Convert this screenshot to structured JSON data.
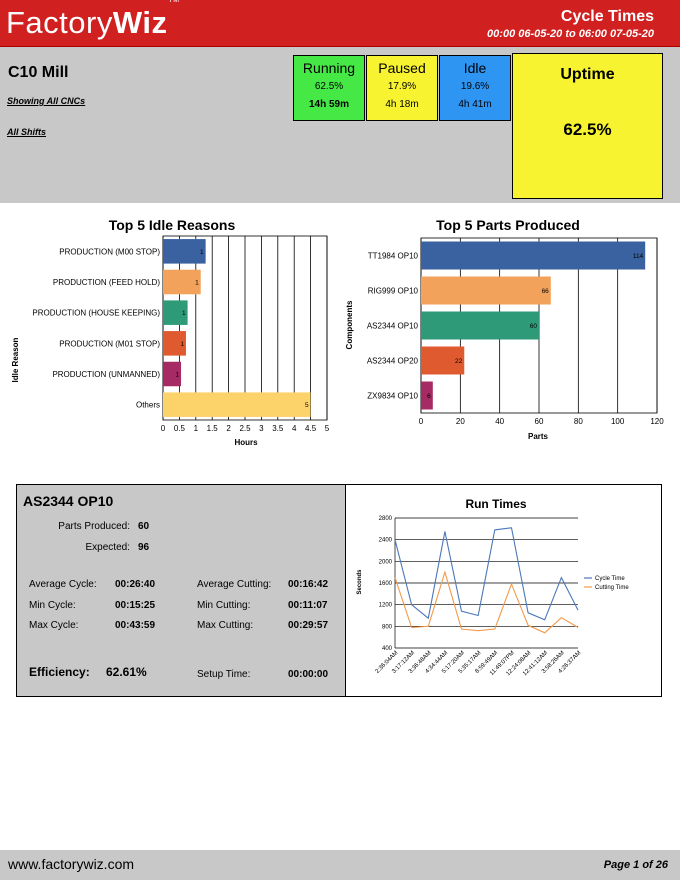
{
  "header": {
    "logo_plain": "Factory",
    "logo_bold": "Wiz",
    "logo_tm": "TM",
    "title": "Cycle Times",
    "range": "00:00 06-05-20  to  06:00 07-05-20"
  },
  "summary": {
    "machine": "C10 Mill",
    "link_cncs": "Showing All CNCs",
    "link_shifts": "All Shifts",
    "running": {
      "label": "Running",
      "pct": "62.5%",
      "dur": "14h 59m",
      "color": "#46e846"
    },
    "paused": {
      "label": "Paused",
      "pct": "17.9%",
      "dur": "4h 18m",
      "color": "#f7f331"
    },
    "idle": {
      "label": "Idle",
      "pct": "19.6%",
      "dur": "4h 41m",
      "color": "#2e95f3"
    },
    "uptime": {
      "label": "Uptime",
      "value": "62.5%",
      "color": "#f7f331"
    }
  },
  "idle_chart": {
    "title": "Top 5 Idle Reasons",
    "xlabel": "Hours",
    "ylabel": "Idle Reason",
    "xticks": [
      "0",
      "0.5",
      "1",
      "1.5",
      "2",
      "2.5",
      "3",
      "3.5",
      "4",
      "4.5",
      "5"
    ]
  },
  "parts_chart": {
    "title": "Top 5 Parts Produced",
    "xlabel": "Parts",
    "ylabel": "Components",
    "xticks": [
      "0",
      "20",
      "40",
      "60",
      "80",
      "100",
      "120"
    ]
  },
  "runtimes_chart": {
    "title": "Run Times",
    "ylabel": "Seconds",
    "yticks": [
      "400",
      "800",
      "1200",
      "1600",
      "2000",
      "2400",
      "2800"
    ]
  },
  "detail": {
    "part": "AS2344 OP10",
    "parts_produced_label": "Parts Produced:",
    "parts_produced": "60",
    "expected_label": "Expected:",
    "expected": "96",
    "avg_cycle_label": "Average Cycle:",
    "avg_cycle": "00:26:40",
    "min_cycle_label": "Min Cycle:",
    "min_cycle": "00:15:25",
    "max_cycle_label": "Max Cycle:",
    "max_cycle": "00:43:59",
    "avg_cut_label": "Average Cutting:",
    "avg_cut": "00:16:42",
    "min_cut_label": "Min Cutting:",
    "min_cut": "00:11:07",
    "max_cut_label": "Max Cutting:",
    "max_cut": "00:29:57",
    "efficiency_label": "Efficiency:",
    "efficiency": "62.61%",
    "setup_label": "Setup Time:",
    "setup": "00:00:00"
  },
  "footer": {
    "url": "www.factorywiz.com",
    "page": "Page 1 of 26"
  },
  "chart_data": [
    {
      "type": "bar",
      "orientation": "horizontal",
      "title": "Top 5 Idle Reasons",
      "xlabel": "Hours",
      "ylabel": "Idle Reason",
      "xlim": [
        0,
        5
      ],
      "categories": [
        "PRODUCTION (M00 STOP)",
        "PRODUCTION (FEED HOLD)",
        "PRODUCTION (HOUSE KEEPING)",
        "PRODUCTION (M01 STOP)",
        "PRODUCTION (UNMANNED)",
        "Others"
      ],
      "values": [
        1.3,
        1.15,
        0.75,
        0.7,
        0.55,
        4.5
      ],
      "data_labels": [
        "1",
        "1",
        "1",
        "1",
        "1",
        "5"
      ],
      "colors": [
        "#3a62a0",
        "#f2a25a",
        "#2e9a78",
        "#e05a30",
        "#a62a63",
        "#fcd26b"
      ],
      "grid": true
    },
    {
      "type": "bar",
      "orientation": "horizontal",
      "title": "Top 5 Parts Produced",
      "xlabel": "Parts",
      "ylabel": "Components",
      "xlim": [
        0,
        120
      ],
      "categories": [
        "TT1984 OP10",
        "RIG999 OP10",
        "AS2344 OP10",
        "AS2344 OP20",
        "ZX9834 OP10"
      ],
      "values": [
        114,
        66,
        60,
        22,
        6
      ],
      "colors": [
        "#3a62a0",
        "#f2a25a",
        "#2e9a78",
        "#e05a30",
        "#a62a63"
      ],
      "grid": true
    },
    {
      "type": "line",
      "title": "Run Times",
      "ylabel": "Seconds",
      "ylim": [
        400,
        2800
      ],
      "x": [
        "2:36:04AM",
        "3:17:12AM",
        "3:36:48AM",
        "4:34:44AM",
        "5:17:20AM",
        "5:35:17AM",
        "8:59:49AM",
        "11:49:07PM",
        "12:24:08AM",
        "12:41:12AM",
        "3:58:26AM",
        "4:26:37AM"
      ],
      "series": [
        {
          "name": "Cycle Time",
          "color": "#4a78b8",
          "values": [
            2400,
            1200,
            950,
            2550,
            1080,
            1000,
            2580,
            2620,
            1050,
            920,
            1700,
            1100
          ]
        },
        {
          "name": "Cutting Time",
          "color": "#f29a4a",
          "values": [
            1700,
            780,
            800,
            1800,
            750,
            720,
            750,
            1580,
            820,
            680,
            960,
            780
          ]
        }
      ],
      "legend": "right",
      "grid": true
    }
  ]
}
